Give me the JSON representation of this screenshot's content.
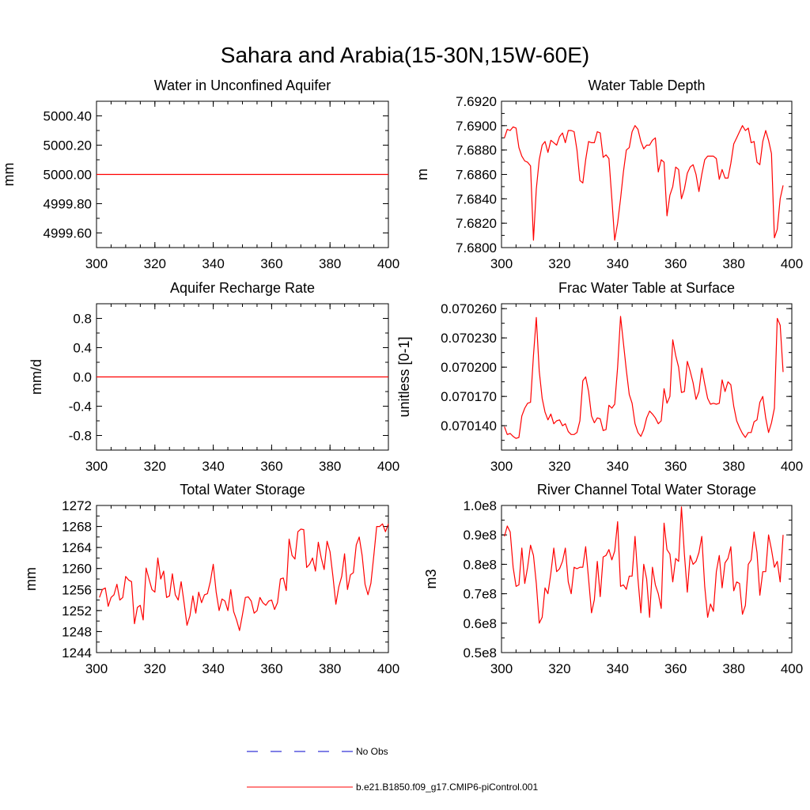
{
  "figure_title": "Sahara and Arabia(15-30N,15W-60E)",
  "colors": {
    "model": "#ff0000",
    "obs": "#0000cc",
    "axis": "#000000"
  },
  "legend": [
    {
      "label": "No Obs",
      "style": "dashed",
      "color": "#0000cc"
    },
    {
      "label": "b.e21.B1850.f09_g17.CMIP6-piControl.001",
      "style": "solid",
      "color": "#ff0000"
    }
  ],
  "chart_data": [
    {
      "type": "line",
      "title": "Water in Unconfined Aquifer",
      "ylabel": "mm",
      "xlim": [
        300,
        400
      ],
      "ylim": [
        4999.5,
        5000.5
      ],
      "xticks": [
        300,
        320,
        340,
        360,
        380,
        400
      ],
      "xtick_labels": [
        "300",
        "320",
        "340",
        "360",
        "380",
        "400"
      ],
      "yticks": [
        4999.6,
        4999.8,
        5000.0,
        5000.2,
        5000.4
      ],
      "ytick_labels": [
        "4999.60",
        "4999.80",
        "5000.00",
        "5000.20",
        "5000.40"
      ],
      "x_start": 301,
      "series": [
        {
          "name": "b.e21.B1850.f09_g17.CMIP6-piControl.001",
          "constant": 5000.0
        }
      ]
    },
    {
      "type": "line",
      "title": "Water Table Depth",
      "ylabel": "m",
      "xlim": [
        300,
        400
      ],
      "ylim": [
        7.68,
        7.692
      ],
      "xticks": [
        300,
        320,
        340,
        360,
        380,
        400
      ],
      "xtick_labels": [
        "300",
        "320",
        "340",
        "360",
        "380",
        "400"
      ],
      "yticks": [
        7.68,
        7.682,
        7.684,
        7.686,
        7.688,
        7.69,
        7.692
      ],
      "ytick_labels": [
        "7.6800",
        "7.6820",
        "7.6840",
        "7.6860",
        "7.6880",
        "7.6900",
        "7.6920"
      ],
      "x_start": 301,
      "series": [
        {
          "name": "b.e21.B1850.f09_g17.CMIP6-piControl.001",
          "values": [
            7.689,
            7.6897,
            7.6896,
            7.6899,
            7.6898,
            7.6882,
            7.6875,
            7.6871,
            7.687,
            7.6867,
            7.6806,
            7.6848,
            7.6872,
            7.6884,
            7.6887,
            7.6878,
            7.6888,
            7.6886,
            7.6884,
            7.6891,
            7.6894,
            7.6886,
            7.6896,
            7.6896,
            7.6895,
            7.688,
            7.6855,
            7.6853,
            7.6872,
            7.6887,
            7.6886,
            7.6886,
            7.6895,
            7.6894,
            7.6874,
            7.6876,
            7.6873,
            7.684,
            7.6806,
            7.682,
            7.684,
            7.6862,
            7.688,
            7.6882,
            7.6895,
            7.69,
            7.6897,
            7.6887,
            7.6881,
            7.6884,
            7.6884,
            7.6888,
            7.689,
            7.6862,
            7.6872,
            7.687,
            7.6826,
            7.6843,
            7.685,
            7.6866,
            7.6864,
            7.684,
            7.6848,
            7.6861,
            7.6866,
            7.6868,
            7.686,
            7.6846,
            7.686,
            7.6872,
            7.6875,
            7.6875,
            7.6875,
            7.6873,
            7.6856,
            7.6864,
            7.6857,
            7.6857,
            7.6869,
            7.6885,
            7.689,
            7.6895,
            7.69,
            7.6896,
            7.6898,
            7.6886,
            7.6887,
            7.687,
            7.6868,
            7.6887,
            7.6896,
            7.6888,
            7.6877,
            7.6808,
            7.6815,
            7.684,
            7.6851
          ]
        }
      ]
    },
    {
      "type": "line",
      "title": "Aquifer Recharge Rate",
      "ylabel": "mm/d",
      "xlim": [
        300,
        400
      ],
      "ylim": [
        -1.0,
        1.0
      ],
      "xticks": [
        300,
        320,
        340,
        360,
        380,
        400
      ],
      "xtick_labels": [
        "300",
        "320",
        "340",
        "360",
        "380",
        "400"
      ],
      "yticks": [
        -0.8,
        -0.4,
        0.0,
        0.4,
        0.8
      ],
      "ytick_labels": [
        "-0.8",
        "-0.4",
        "0.0",
        "0.4",
        "0.8"
      ],
      "x_start": 301,
      "series": [
        {
          "name": "b.e21.B1850.f09_g17.CMIP6-piControl.001",
          "constant": 0.0
        }
      ]
    },
    {
      "type": "line",
      "title": "Frac Water Table at Surface",
      "ylabel": "unitless [0-1]",
      "xlim": [
        300,
        400
      ],
      "ylim": [
        0.070115,
        0.070265
      ],
      "xticks": [
        300,
        320,
        340,
        360,
        380,
        400
      ],
      "xtick_labels": [
        "300",
        "320",
        "340",
        "360",
        "380",
        "400"
      ],
      "yticks": [
        0.07014,
        0.07017,
        0.0702,
        0.07023,
        0.07026
      ],
      "ytick_labels": [
        "0.070140",
        "0.070170",
        "0.070200",
        "0.070230",
        "0.070260"
      ],
      "x_start": 301,
      "series": [
        {
          "name": "b.e21.B1850.f09_g17.CMIP6-piControl.001",
          "values": [
            0.070139,
            0.070131,
            0.070132,
            0.070129,
            0.070127,
            0.070128,
            0.07015,
            0.070158,
            0.070163,
            0.070164,
            0.070212,
            0.070251,
            0.070196,
            0.070168,
            0.070154,
            0.070146,
            0.070152,
            0.070142,
            0.070145,
            0.070146,
            0.07014,
            0.070142,
            0.070134,
            0.070131,
            0.070131,
            0.070133,
            0.070145,
            0.070186,
            0.07019,
            0.070175,
            0.07015,
            0.070143,
            0.070148,
            0.070147,
            0.070135,
            0.070136,
            0.070161,
            0.070158,
            0.070162,
            0.0702,
            0.070252,
            0.070225,
            0.070197,
            0.070172,
            0.070163,
            0.070142,
            0.070133,
            0.070129,
            0.070136,
            0.070148,
            0.070155,
            0.070152,
            0.070148,
            0.070142,
            0.070145,
            0.070178,
            0.070163,
            0.07017,
            0.070228,
            0.070212,
            0.0702,
            0.070174,
            0.070175,
            0.070206,
            0.070196,
            0.070184,
            0.070167,
            0.070175,
            0.070199,
            0.070183,
            0.070168,
            0.070162,
            0.070163,
            0.070162,
            0.070163,
            0.070187,
            0.070175,
            0.070185,
            0.070182,
            0.07016,
            0.070145,
            0.070138,
            0.070132,
            0.070128,
            0.070133,
            0.070133,
            0.070144,
            0.070146,
            0.070164,
            0.07017,
            0.070148,
            0.070133,
            0.070143,
            0.070158,
            0.07025,
            0.070243,
            0.070195
          ]
        }
      ]
    },
    {
      "type": "line",
      "title": "Total Water Storage",
      "ylabel": "mm",
      "xlim": [
        300,
        400
      ],
      "ylim": [
        1244,
        1272
      ],
      "xticks": [
        300,
        320,
        340,
        360,
        380,
        400
      ],
      "xtick_labels": [
        "300",
        "320",
        "340",
        "360",
        "380",
        "400"
      ],
      "yticks": [
        1244,
        1248,
        1252,
        1256,
        1260,
        1264,
        1268,
        1272
      ],
      "ytick_labels": [
        "1244",
        "1248",
        "1252",
        "1256",
        "1260",
        "1264",
        "1268",
        "1272"
      ],
      "x_start": 301,
      "series": [
        {
          "name": "b.e21.B1850.f09_g17.CMIP6-piControl.001",
          "values": [
            1254.5,
            1256.0,
            1256.3,
            1252.8,
            1254.5,
            1255.0,
            1257.0,
            1254.0,
            1254.5,
            1258.5,
            1257.8,
            1257.5,
            1249.5,
            1252.6,
            1253.0,
            1250.2,
            1260.1,
            1258.0,
            1256.0,
            1255.5,
            1262.0,
            1258.0,
            1259.5,
            1254.5,
            1254.8,
            1259.0,
            1255.0,
            1254.0,
            1257.5,
            1253.5,
            1249.2,
            1251.0,
            1254.8,
            1251.5,
            1255.5,
            1253.5,
            1255.0,
            1255.2,
            1257.5,
            1260.8,
            1255.5,
            1252.0,
            1254.2,
            1253.8,
            1252.0,
            1256.0,
            1251.8,
            1250.2,
            1248.2,
            1251.2,
            1254.5,
            1254.6,
            1253.8,
            1251.5,
            1252.0,
            1254.5,
            1253.5,
            1253.0,
            1253.8,
            1254.0,
            1252.2,
            1253.5,
            1258.0,
            1258.2,
            1255.8,
            1265.6,
            1262.5,
            1261.8,
            1267.0,
            1267.5,
            1267.4,
            1260.2,
            1260.8,
            1262.0,
            1259.5,
            1265.0,
            1262.0,
            1259.8,
            1265.2,
            1263.2,
            1258.5,
            1253.2,
            1256.5,
            1258.5,
            1262.8,
            1256.0,
            1258.8,
            1259.2,
            1264.5,
            1266.0,
            1262.5,
            1257.0,
            1255.0,
            1257.2,
            1262.5,
            1268.0,
            1268.0,
            1268.5,
            1267.0,
            1268.5
          ]
        }
      ]
    },
    {
      "type": "line",
      "title": "River Channel Total Water Storage",
      "ylabel": "m3",
      "xlim": [
        300,
        400
      ],
      "ylim": [
        50000000,
        100000000
      ],
      "xticks": [
        300,
        320,
        340,
        360,
        380,
        400
      ],
      "xtick_labels": [
        "300",
        "320",
        "340",
        "360",
        "380",
        "400"
      ],
      "yticks": [
        50000000,
        60000000,
        70000000,
        80000000,
        90000000,
        100000000
      ],
      "ytick_labels": [
        "0.5e8",
        "0.6e8",
        "0.7e8",
        "0.8e8",
        "0.9e8",
        "1.0e8"
      ],
      "x_start": 301,
      "series": [
        {
          "name": "b.e21.B1850.f09_g17.CMIP6-piControl.001",
          "values": [
            89500000,
            93000000,
            91000000,
            79000000,
            72500000,
            73000000,
            85500000,
            73500000,
            79000000,
            86500000,
            83000000,
            73500000,
            60000000,
            62000000,
            72000000,
            70000000,
            77000000,
            85500000,
            77500000,
            78500000,
            81000000,
            85500000,
            74000000,
            70000000,
            79000000,
            78500000,
            79000000,
            79000000,
            86000000,
            75000000,
            63500000,
            68000000,
            81000000,
            69000000,
            82500000,
            83000000,
            85000000,
            81500000,
            84500000,
            94500000,
            72500000,
            73000000,
            71500000,
            76000000,
            76000000,
            89500000,
            75000000,
            63500000,
            80000000,
            75000000,
            62000000,
            79000000,
            73000000,
            70000000,
            65000000,
            94000000,
            85000000,
            83500000,
            74000000,
            82000000,
            81000000,
            99500000,
            83500000,
            70500000,
            83000000,
            80000000,
            81000000,
            84000000,
            89500000,
            72500000,
            62000000,
            66500000,
            64000000,
            77500000,
            83000000,
            72000000,
            80500000,
            82000000,
            86000000,
            71000000,
            74000000,
            73500000,
            63000000,
            66000000,
            80000000,
            81500000,
            91000000,
            84000000,
            69500000,
            77500000,
            77500000,
            90000000,
            85000000,
            79000000,
            81000000,
            74000000,
            90000000
          ]
        }
      ]
    }
  ]
}
